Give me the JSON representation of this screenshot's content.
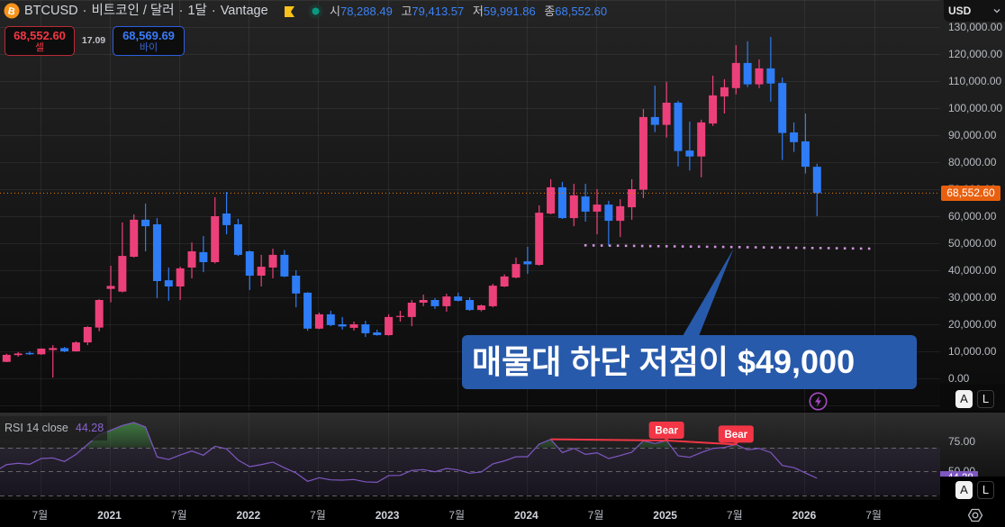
{
  "header": {
    "symbol": "BTCUSD",
    "separator": "·",
    "description": "비트코인 / 달러",
    "interval": "1달",
    "exchange": "Vantage",
    "ohlc": {
      "open_label": "시",
      "open": "78,288.49",
      "high_label": "고",
      "high": "79,413.57",
      "low_label": "저",
      "low": "59,991.86",
      "close_label": "종",
      "close": "68,552.60"
    }
  },
  "trade": {
    "sell_price": "68,552.60",
    "sell_label": "셀",
    "spread": "17.09",
    "buy_price": "68,569.69",
    "buy_label": "바이"
  },
  "currency_selector": {
    "value": "USD"
  },
  "price_axis": {
    "current_price_label": "68,552.60",
    "auto_button": "A",
    "log_button": "L"
  },
  "annotation": {
    "text": "매물대 하단 저점이 $49,000"
  },
  "rsi_legend": {
    "name": "RSI 14 close",
    "value": "44.28"
  },
  "rsi_axis": {
    "current_value_label": "44.28",
    "auto_button": "A",
    "log_button": "L"
  },
  "icons": {
    "symbol": "bitcoin-icon",
    "flag": "flag-icon",
    "market_status": "market-open-dot-icon",
    "chevron": "chevron-down-icon",
    "event_marker": "lightning-icon",
    "settings": "gear-icon"
  },
  "colors": {
    "up": "#ec407a",
    "down": "#2e7cf6",
    "rsi": "#7e57c2",
    "bear": "#f23645",
    "price_line": "#f57c00",
    "callout": "#285aab",
    "support_dots": "#cf93dc",
    "overbought_fill": "#4caf50"
  },
  "chart_data": [
    {
      "type": "candlestick",
      "title": "BTCUSD · 비트코인 / 달러 · 1달 · Vantage",
      "interval": "1M",
      "categories": [
        "2020-04",
        "2020-05",
        "2020-06",
        "2020-07",
        "2020-08",
        "2020-09",
        "2020-10",
        "2020-11",
        "2020-12",
        "2021-01",
        "2021-02",
        "2021-03",
        "2021-04",
        "2021-05",
        "2021-06",
        "2021-07",
        "2021-08",
        "2021-09",
        "2021-10",
        "2021-11",
        "2021-12",
        "2022-01",
        "2022-02",
        "2022-03",
        "2022-04",
        "2022-05",
        "2022-06",
        "2022-07",
        "2022-08",
        "2022-09",
        "2022-10",
        "2022-11",
        "2022-12",
        "2023-01",
        "2023-02",
        "2023-03",
        "2023-04",
        "2023-05",
        "2023-06",
        "2023-07",
        "2023-08",
        "2023-09",
        "2023-10",
        "2023-11",
        "2023-12",
        "2024-01",
        "2024-02",
        "2024-03",
        "2024-04",
        "2024-05",
        "2024-06",
        "2024-07",
        "2024-08",
        "2024-09",
        "2024-10",
        "2024-11",
        "2024-12",
        "2025-01",
        "2025-02",
        "2025-03",
        "2025-04",
        "2025-05",
        "2025-06",
        "2025-07",
        "2025-08",
        "2025-09",
        "2025-10",
        "2025-11",
        "2025-12",
        "2026-01",
        "2026-02"
      ],
      "ohlc_fields": [
        "open",
        "high",
        "low",
        "close"
      ],
      "ohlc": [
        [
          6100,
          9100,
          6000,
          8700
        ],
        [
          8600,
          9700,
          8000,
          9200
        ],
        [
          9400,
          10000,
          8700,
          8900
        ],
        [
          8900,
          11100,
          8700,
          11000
        ],
        [
          10500,
          12300,
          300,
          11200
        ],
        [
          11200,
          11600,
          9700,
          10000
        ],
        [
          10000,
          13700,
          9900,
          13300
        ],
        [
          13300,
          19300,
          12300,
          19000
        ],
        [
          18800,
          29300,
          17400,
          29000
        ],
        [
          33100,
          41700,
          28100,
          34200
        ],
        [
          32100,
          57700,
          31800,
          45300
        ],
        [
          45000,
          60700,
          44700,
          58700
        ],
        [
          58700,
          64700,
          47000,
          56300
        ],
        [
          57000,
          59300,
          29700,
          36000
        ],
        [
          36300,
          41000,
          28700,
          34000
        ],
        [
          34000,
          41300,
          29000,
          40700
        ],
        [
          41000,
          50300,
          37000,
          47000
        ],
        [
          46700,
          52700,
          39300,
          43000
        ],
        [
          43000,
          67000,
          42500,
          60000
        ],
        [
          61000,
          69000,
          53300,
          56700
        ],
        [
          57000,
          59000,
          45300,
          45700
        ],
        [
          47000,
          47300,
          32700,
          38000
        ],
        [
          38000,
          45700,
          34000,
          41300
        ],
        [
          41000,
          48000,
          37000,
          45700
        ],
        [
          45700,
          47500,
          37500,
          37700
        ],
        [
          38000,
          40000,
          26300,
          31400
        ],
        [
          31700,
          31900,
          17600,
          18400
        ],
        [
          18400,
          24300,
          18200,
          23700
        ],
        [
          23700,
          25000,
          19300,
          19700
        ],
        [
          20000,
          22700,
          18000,
          19200
        ],
        [
          18700,
          21000,
          17700,
          20000
        ],
        [
          20000,
          21300,
          15300,
          16700
        ],
        [
          17000,
          18000,
          15800,
          16000
        ],
        [
          16000,
          23700,
          15800,
          22700
        ],
        [
          22900,
          25000,
          21000,
          23100
        ],
        [
          22700,
          29000,
          19300,
          28000
        ],
        [
          28000,
          31000,
          26700,
          29000
        ],
        [
          29000,
          29700,
          25700,
          26700
        ],
        [
          26700,
          31300,
          24700,
          30300
        ],
        [
          30300,
          31700,
          28500,
          28700
        ],
        [
          29000,
          30000,
          25000,
          25300
        ],
        [
          25300,
          27300,
          24800,
          27000
        ],
        [
          26700,
          35000,
          26300,
          34300
        ],
        [
          34000,
          38500,
          33800,
          37700
        ],
        [
          37300,
          44700,
          37000,
          42300
        ],
        [
          43300,
          48700,
          38700,
          42200
        ],
        [
          42000,
          64000,
          41700,
          61300
        ],
        [
          61000,
          73700,
          60700,
          70700
        ],
        [
          70700,
          72700,
          59000,
          59300
        ],
        [
          59300,
          72000,
          56300,
          67700
        ],
        [
          67300,
          72000,
          58000,
          61700
        ],
        [
          61700,
          70000,
          53300,
          64300
        ],
        [
          64300,
          65700,
          49000,
          58300
        ],
        [
          58300,
          66300,
          52300,
          63700
        ],
        [
          63300,
          73700,
          58700,
          70000
        ],
        [
          69800,
          99700,
          66700,
          96700
        ],
        [
          96700,
          108300,
          91100,
          93800
        ],
        [
          93800,
          109700,
          89100,
          102000
        ],
        [
          102000,
          102700,
          78400,
          84100
        ],
        [
          84300,
          95000,
          76900,
          82100
        ],
        [
          82100,
          95700,
          74400,
          94700
        ],
        [
          94300,
          112000,
          93400,
          104700
        ],
        [
          104300,
          110700,
          98000,
          107700
        ],
        [
          107400,
          123300,
          105100,
          116700
        ],
        [
          116700,
          124700,
          107800,
          108800
        ],
        [
          108800,
          118000,
          107400,
          114700
        ],
        [
          114700,
          126300,
          102400,
          109100
        ],
        [
          109300,
          111300,
          80800,
          90800
        ],
        [
          91000,
          94700,
          83800,
          87400
        ],
        [
          87700,
          98000,
          75800,
          78300
        ],
        [
          78288.49,
          79413.57,
          59991.86,
          68552.6
        ]
      ],
      "xlabel": "",
      "ylabel": "USD",
      "ylim": [
        0,
        130000
      ],
      "grid": true,
      "yaxis": {
        "ticks": [
          0,
          10000,
          20000,
          30000,
          40000,
          50000,
          60000,
          70000,
          80000,
          90000,
          100000,
          110000,
          120000,
          130000
        ],
        "tick_labels": [
          "0.00",
          "10,000.00",
          "20,000.00",
          "30,000.00",
          "40,000.00",
          "50,000.00",
          "60,000.00",
          "70,000.00",
          "80,000.00",
          "90,000.00",
          "100,000.00",
          "110,000.00",
          "120,000.00",
          "130,000.00"
        ]
      },
      "xaxis": {
        "ticks": [
          {
            "index": 3,
            "label": "7월"
          },
          {
            "index": 9,
            "label": "2021"
          },
          {
            "index": 15,
            "label": "7월"
          },
          {
            "index": 21,
            "label": "2022"
          },
          {
            "index": 27,
            "label": "7월"
          },
          {
            "index": 33,
            "label": "2023"
          },
          {
            "index": 39,
            "label": "7월"
          },
          {
            "index": 45,
            "label": "2024"
          },
          {
            "index": 51,
            "label": "7월"
          },
          {
            "index": 57,
            "label": "2025"
          },
          {
            "index": 63,
            "label": "7월"
          },
          {
            "index": 69,
            "label": "2026"
          },
          {
            "index": 75,
            "label": "7월"
          }
        ]
      },
      "current_price": 68552.6,
      "annotations": [
        {
          "type": "dotted_line",
          "start": {
            "index": 49.9,
            "price": 49230
          },
          "end": {
            "index": 74.6,
            "price": 48000
          }
        },
        {
          "type": "callout",
          "text": "매물대 하단 저점이 $49,000",
          "target": {
            "index": 62.8,
            "price": 48100
          }
        }
      ]
    },
    {
      "type": "line",
      "title": "RSI 14 close",
      "start_index": -1,
      "values": [
        50.0,
        55.7,
        56.8,
        56.0,
        60.8,
        61.3,
        58.3,
        64.3,
        72.6,
        80.9,
        84.5,
        88.5,
        91.0,
        87.2,
        62.1,
        60.0,
        63.8,
        67.1,
        63.6,
        71.1,
        68.9,
        59.5,
        54.0,
        55.7,
        57.8,
        53.0,
        48.7,
        41.7,
        44.7,
        42.9,
        42.7,
        43.2,
        41.2,
        40.9,
        46.5,
        46.7,
        50.8,
        51.5,
        49.7,
        52.5,
        51.2,
        48.5,
        49.5,
        56.3,
        58.8,
        62.3,
        62.3,
        72.9,
        76.9,
        65.8,
        69.3,
        64.3,
        65.6,
        60.8,
        63.3,
        66.1,
        75.7,
        73.4,
        75.9,
        63.1,
        61.8,
        65.8,
        69.3,
        70.1,
        72.6,
        68.1,
        69.3,
        65.8,
        55.0,
        53.2,
        48.7,
        44.28
      ],
      "ylim": [
        26,
        99
      ],
      "levels": [
        70,
        50,
        30
      ],
      "yaxis": {
        "ticks": [
          75,
          50
        ],
        "tick_labels": [
          "75.00",
          "50.00"
        ]
      },
      "current_value": 44.28,
      "divergences": [
        {
          "from_index": 47,
          "to_index": 57,
          "label": "Bear"
        },
        {
          "from_index": 57,
          "to_index": 63,
          "label": "Bear"
        }
      ]
    }
  ]
}
